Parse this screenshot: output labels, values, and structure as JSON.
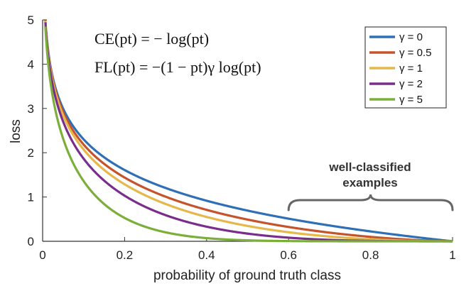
{
  "chart_data": {
    "type": "line",
    "title": "",
    "xlabel": "probability of ground truth class",
    "ylabel": "loss",
    "xlim": [
      0,
      1
    ],
    "ylim": [
      0,
      5
    ],
    "x_ticks": [
      "0",
      "0.2",
      "0.4",
      "0.6",
      "0.8",
      "1"
    ],
    "y_ticks": [
      "0",
      "1",
      "2",
      "3",
      "4",
      "5"
    ],
    "grid": false,
    "legend_position": "top-right",
    "formulas": [
      "CE(pt) = − log(pt)",
      "FL(pt) = −(1 − pt)γ log(pt)"
    ],
    "annotation": {
      "line1": "well-classified",
      "line2": "examples",
      "x_range": [
        0.6,
        1.0
      ]
    },
    "series": [
      {
        "name": "γ = 0",
        "gamma": 0,
        "color": "#2F6FB5"
      },
      {
        "name": "γ = 0.5",
        "gamma": 0.5,
        "color": "#C5532B"
      },
      {
        "name": "γ = 1",
        "gamma": 1,
        "color": "#E5B84B"
      },
      {
        "name": "γ = 2",
        "gamma": 2,
        "color": "#7A2E8C"
      },
      {
        "name": "γ = 5",
        "gamma": 5,
        "color": "#7CAF3A"
      }
    ]
  }
}
